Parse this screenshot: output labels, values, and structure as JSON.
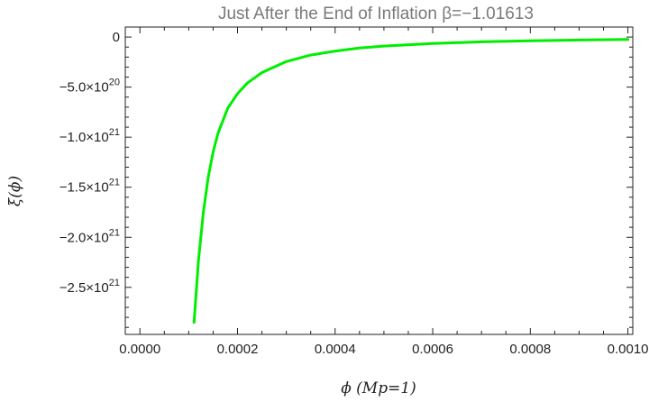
{
  "chart_data": {
    "type": "line",
    "title": "Just After the End of Inflation β=−1.01613",
    "xlabel": "ϕ (Mp=1)",
    "ylabel": "ξ(ϕ)",
    "xlim": [
      -3e-05,
      0.00101
    ],
    "ylim": [
      -2.97e+21,
      1e+20
    ],
    "x_ticks": [
      {
        "value": 0.0,
        "label": "0.0000"
      },
      {
        "value": 0.0002,
        "label": "0.0002"
      },
      {
        "value": 0.0004,
        "label": "0.0004"
      },
      {
        "value": 0.0006,
        "label": "0.0006"
      },
      {
        "value": 0.0008,
        "label": "0.0008"
      },
      {
        "value": 0.001,
        "label": "0.0010"
      }
    ],
    "y_ticks": [
      {
        "value": 0,
        "mantissa": "0",
        "exponent": ""
      },
      {
        "value": -5e+20,
        "mantissa": "−5.0×10",
        "exponent": "20"
      },
      {
        "value": -1e+21,
        "mantissa": "−1.0×10",
        "exponent": "21"
      },
      {
        "value": -1.5e+21,
        "mantissa": "−1.5×10",
        "exponent": "21"
      },
      {
        "value": -2e+21,
        "mantissa": "−2.0×10",
        "exponent": "21"
      },
      {
        "value": -2.5e+21,
        "mantissa": "−2.5×10",
        "exponent": "21"
      }
    ],
    "series": [
      {
        "color": "#00ee00",
        "x": [
          0.000111,
          0.00012,
          0.00013,
          0.00014,
          0.00015,
          0.00016,
          0.00018,
          0.0002,
          0.00022,
          0.00025,
          0.0003,
          0.00035,
          0.0004,
          0.00045,
          0.0005,
          0.0006,
          0.0007,
          0.0008,
          0.0009,
          0.001
        ],
        "y": [
          -2.85e+21,
          -2.23e+21,
          -1.75e+21,
          -1.4e+21,
          -1.15e+21,
          -9.6e+20,
          -7.1e+20,
          -5.65e+20,
          -4.6e+20,
          -3.55e+20,
          -2.45e+20,
          -1.8e+20,
          -1.4e+20,
          -1.1e+20,
          -9e+19,
          -6.5e+19,
          -4.8e+19,
          -3.7e+19,
          -3e+19,
          -2.4e+19
        ]
      }
    ],
    "grid": false,
    "frame": true
  }
}
